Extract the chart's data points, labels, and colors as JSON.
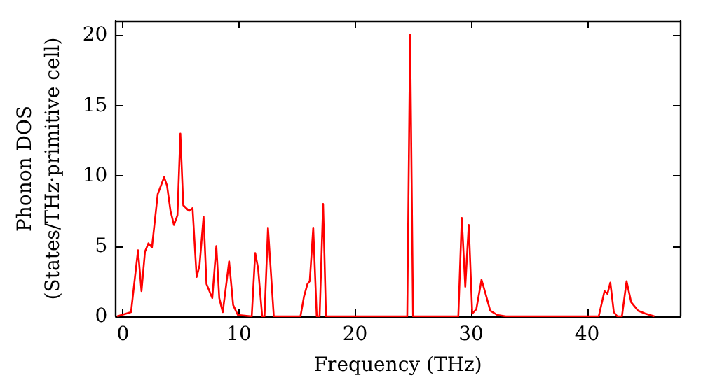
{
  "chart_data": {
    "type": "line",
    "xlabel": "Frequency (THz)",
    "ylabel": "Phonon DOS\n(States/THz·primitive cell)",
    "xlim": [
      -0.6,
      48
    ],
    "ylim": [
      0,
      21
    ],
    "xticks": [
      0,
      10,
      20,
      30,
      40
    ],
    "yticks": [
      0,
      5,
      10,
      15,
      20
    ],
    "grid": false,
    "marker": "none",
    "line_style": "solid",
    "series": [
      {
        "color": "#ff0000",
        "x": [
          -0.5,
          0.7,
          1.3,
          1.6,
          1.9,
          2.2,
          2.5,
          3.0,
          3.55,
          3.8,
          4.1,
          4.4,
          4.7,
          4.95,
          5.2,
          5.7,
          6.0,
          6.35,
          6.6,
          6.95,
          7.2,
          7.7,
          8.05,
          8.3,
          8.6,
          9.15,
          9.5,
          9.9,
          11.1,
          11.4,
          11.65,
          12.0,
          12.2,
          12.5,
          13.0,
          15.3,
          15.6,
          15.9,
          16.1,
          16.4,
          16.7,
          16.95,
          17.25,
          17.5,
          24.5,
          24.75,
          25.0,
          28.9,
          29.2,
          29.5,
          29.8,
          30.1,
          30.45,
          30.9,
          31.25,
          31.65,
          32.25,
          33.0,
          41.0,
          41.5,
          41.75,
          42.0,
          42.3,
          42.6,
          43.0,
          43.4,
          43.8,
          44.4,
          45.0,
          45.8
        ],
        "values": [
          0,
          0.3,
          4.7,
          1.8,
          4.6,
          5.2,
          4.9,
          8.7,
          9.9,
          9.3,
          7.5,
          6.5,
          7.2,
          13.0,
          7.9,
          7.5,
          7.7,
          2.8,
          3.6,
          7.1,
          2.3,
          1.3,
          5.0,
          1.3,
          0.3,
          3.9,
          0.8,
          0.1,
          0,
          4.5,
          3.4,
          0,
          0,
          6.3,
          0,
          0,
          1.4,
          2.3,
          2.5,
          6.3,
          0,
          0,
          8.0,
          0,
          0,
          20.0,
          0,
          0,
          7.0,
          2.1,
          6.5,
          0.2,
          0.5,
          2.6,
          1.6,
          0.4,
          0.1,
          0,
          0,
          1.8,
          1.6,
          2.4,
          0.3,
          0,
          0,
          2.5,
          1.0,
          0.4,
          0.2,
          0
        ]
      }
    ]
  }
}
